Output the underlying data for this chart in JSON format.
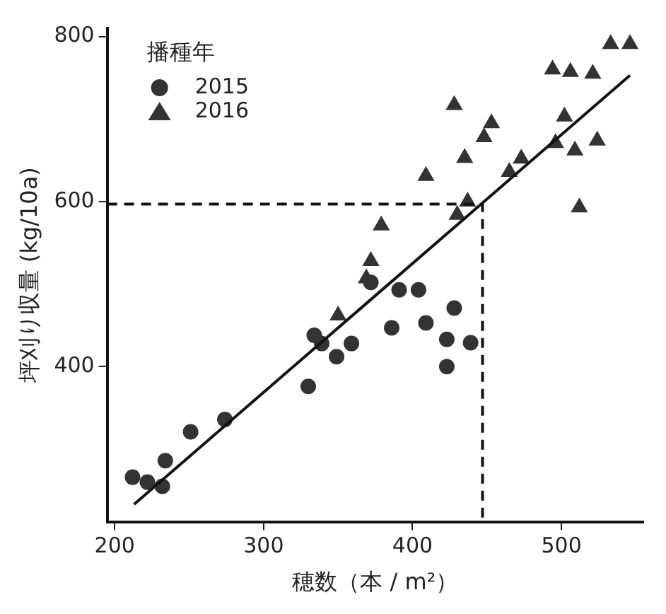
{
  "chart_data": {
    "type": "scatter",
    "xlabel": "穂数（本 / m²）",
    "ylabel": "坪刈り収量 (kg/10a)",
    "legend_title": "播種年",
    "legend": "top left",
    "grid": false,
    "xlim": [
      195,
      555
    ],
    "xticks": [
      200,
      300,
      400,
      500
    ],
    "ylim": [
      212,
      810
    ],
    "yticks": [
      400,
      600,
      800
    ],
    "series": [
      {
        "name": "2015",
        "type": "scatter",
        "marker": "circle",
        "color": "#333333",
        "x": [
          212,
          222,
          232,
          234,
          251,
          274,
          330,
          334,
          339,
          349,
          359,
          372,
          391,
          404,
          386,
          409,
          428,
          423,
          423,
          439
        ],
        "values": [
          266,
          260,
          255,
          286,
          321,
          336,
          376,
          438,
          428,
          412,
          428,
          502,
          493,
          493,
          447,
          453,
          471,
          433,
          400,
          429
        ]
      },
      {
        "name": "2016",
        "type": "scatter",
        "marker": "triangle",
        "color": "#333333",
        "x": [
          350,
          369,
          372,
          379,
          409,
          428,
          435,
          448,
          453,
          430,
          437,
          465,
          473,
          494,
          506,
          521,
          533,
          546,
          502,
          496,
          509,
          524,
          512
        ],
        "values": [
          462,
          507,
          528,
          571,
          631,
          717,
          653,
          678,
          695,
          584,
          600,
          636,
          652,
          760,
          757,
          755,
          791,
          791,
          703,
          671,
          662,
          674,
          593
        ]
      },
      {
        "type": "line",
        "marker": "none",
        "line_style": "solid",
        "color": "#111111",
        "x": [
          213,
          546
        ],
        "values": [
          233,
          753
        ]
      },
      {
        "type": "line",
        "marker": "none",
        "line_style": "dashed",
        "color": "#111111",
        "x": [
          195,
          447,
          447
        ],
        "values": [
          597,
          597,
          212
        ]
      }
    ]
  }
}
